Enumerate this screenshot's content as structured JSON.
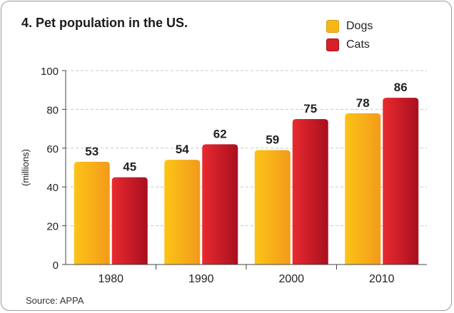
{
  "chart_data": {
    "type": "bar",
    "title": "4. Pet population in the US.",
    "categories": [
      "1980",
      "1990",
      "2000",
      "2010"
    ],
    "series": [
      {
        "name": "Dogs",
        "values": [
          53,
          54,
          59,
          78
        ],
        "color": "#f7b719"
      },
      {
        "name": "Cats",
        "values": [
          45,
          62,
          75,
          86
        ],
        "color": "#d81e2a"
      }
    ],
    "ylabel": "(millions)",
    "ylim": [
      0,
      100
    ],
    "yticks": [
      0,
      20,
      40,
      60,
      80,
      100
    ],
    "grid": true,
    "legend_position": "top-right",
    "source": "Source: APPA"
  }
}
